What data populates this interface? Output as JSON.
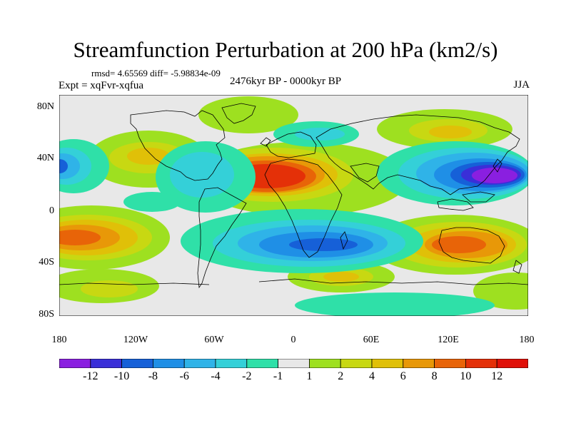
{
  "title": "Streamfunction Perturbation at 200 hPa (km2/s)",
  "stats": "rmsd= 4.65569 diff= -5.98834e-09",
  "experiment": "Expt = xqFvr-xqfua",
  "period": "2476kyr BP - 0000kyr BP",
  "season": "JJA",
  "y_axis_labels": [
    "80N",
    "40N",
    "0",
    "40S",
    "80S"
  ],
  "x_axis_labels": [
    "180",
    "120W",
    "60W",
    "0",
    "60E",
    "120E",
    "180"
  ],
  "colorbar": {
    "labels": [
      "-12",
      "-10",
      "-8",
      "-6",
      "-4",
      "-2",
      "-1",
      "1",
      "2",
      "4",
      "6",
      "8",
      "10",
      "12"
    ],
    "colors": [
      "#8a1fe0",
      "#3a2fd8",
      "#1660d8",
      "#1f8fe6",
      "#2fb3e8",
      "#34d0d8",
      "#2fe0a8",
      "#e8e8e8",
      "#9ee020",
      "#c8d812",
      "#e0c008",
      "#e89808",
      "#e86408",
      "#e43008",
      "#e01008"
    ]
  },
  "palette": {
    "background": "#e8e8e8",
    "coast": "#000000"
  }
}
